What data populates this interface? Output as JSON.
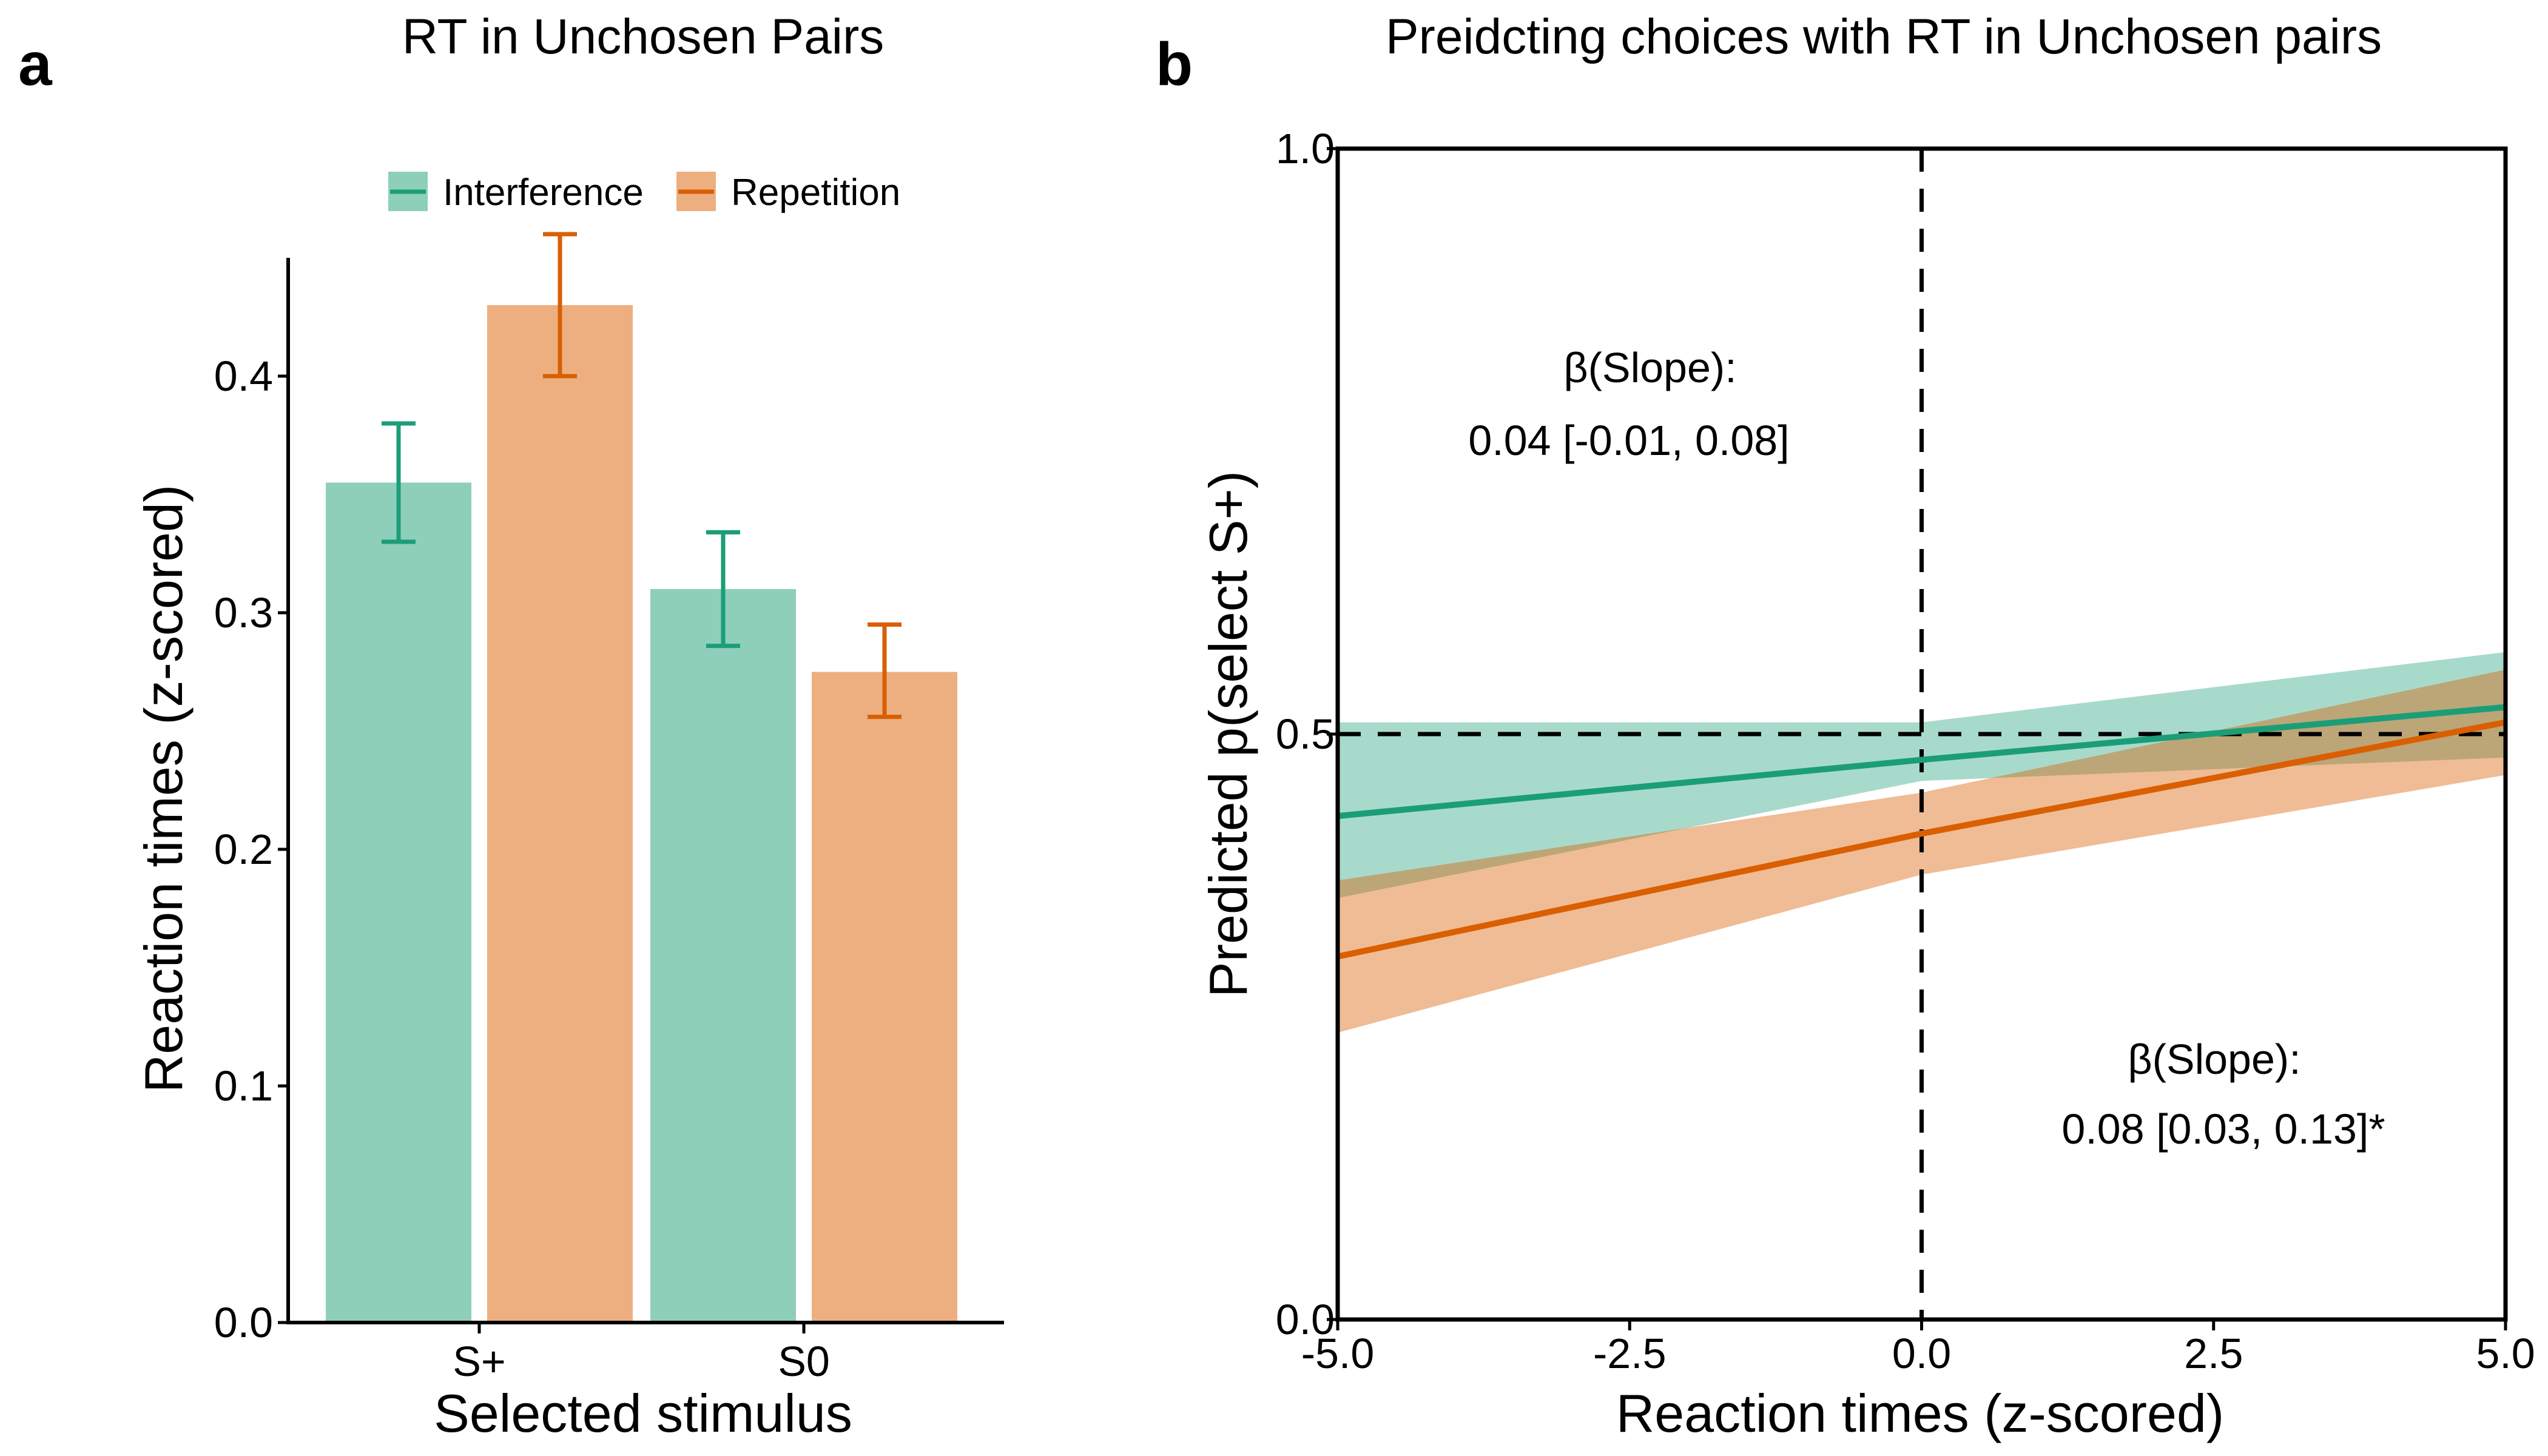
{
  "colors": {
    "interference": "#1b9e77",
    "interference_fill": "#8ecfba",
    "repetition": "#d95f02",
    "repetition_fill": "#edaf80"
  },
  "chart_data": [
    {
      "panel": "a",
      "type": "bar",
      "title": "RT in Unchosen Pairs",
      "xlabel": "Selected stimulus",
      "ylabel": "Reaction times (z-scored)",
      "categories": [
        "S+",
        "S0"
      ],
      "ylim": [
        0,
        0.45
      ],
      "yticks": [
        "0.0",
        "0.1",
        "0.2",
        "0.3",
        "0.4"
      ],
      "legend_position": "top",
      "series": [
        {
          "name": "Interference",
          "values": [
            0.355,
            0.31
          ],
          "err_low": [
            0.33,
            0.286
          ],
          "err_high": [
            0.38,
            0.334
          ]
        },
        {
          "name": "Repetition",
          "values": [
            0.43,
            0.275
          ],
          "err_low": [
            0.4,
            0.256
          ],
          "err_high": [
            0.46,
            0.295
          ]
        }
      ]
    },
    {
      "panel": "b",
      "type": "line",
      "title": "Preidcting choices with RT in Unchosen pairs",
      "xlabel": "Reaction times (z-scored)",
      "ylabel": "Predicted p(select S+)",
      "xlim": [
        -5,
        5
      ],
      "ylim": [
        0,
        1
      ],
      "xticks": [
        "-5.0",
        "-2.5",
        "0.0",
        "2.5",
        "5.0"
      ],
      "yticks": [
        "0.0",
        "0.5",
        "1.0"
      ],
      "reference_lines": {
        "x": 0,
        "y": 0.5
      },
      "series": [
        {
          "name": "Interference",
          "x": [
            -5,
            0,
            5
          ],
          "y": [
            0.43,
            0.478,
            0.523
          ],
          "lower": [
            0.36,
            0.46,
            0.48
          ],
          "upper": [
            0.51,
            0.51,
            0.57
          ],
          "annotation": [
            "β(Slope):",
            "0.04 [-0.01, 0.08]"
          ]
        },
        {
          "name": "Repetition",
          "x": [
            -5,
            0,
            5
          ],
          "y": [
            0.31,
            0.415,
            0.51
          ],
          "lower": [
            0.245,
            0.38,
            0.465
          ],
          "upper": [
            0.375,
            0.45,
            0.555
          ],
          "annotation": [
            "β(Slope):",
            "0.08 [0.03, 0.13]*"
          ]
        }
      ]
    }
  ]
}
